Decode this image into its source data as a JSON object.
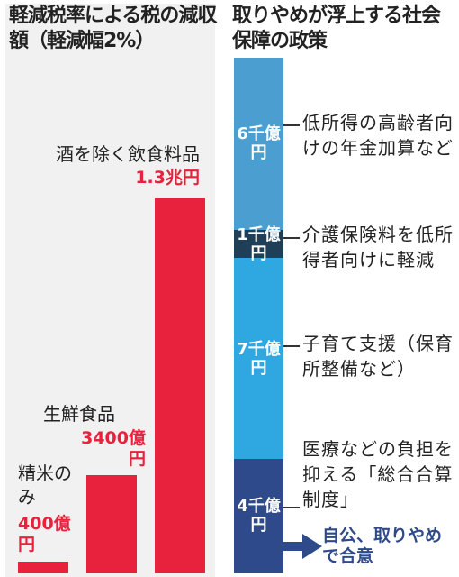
{
  "titles": {
    "left": "軽減税率による税の減収額（軽減幅2%）",
    "right": "取りやめが浮上する社会保障の政策"
  },
  "chart_data": [
    {
      "type": "bar",
      "title": "軽減税率による税の減収額（軽減幅2%）",
      "categories": [
        "精米のみ",
        "生鮮食品",
        "酒を除く飲食料品"
      ],
      "values": [
        400,
        3400,
        13000
      ],
      "value_labels": [
        "400億円",
        "3400億円",
        "1.3兆円"
      ],
      "units": "億円",
      "colors": [
        "#e8213d",
        "#e8213d",
        "#e8213d"
      ]
    },
    {
      "type": "bar",
      "title": "取りやめが浮上する社会保障の政策",
      "stacked": true,
      "categories": [
        "低所得の高齢者向けの年金加算など",
        "介護保険料を低所得者向けに軽減",
        "子育て支援（保育所整備など）",
        "医療などの負担を抑える「総合合算制度」"
      ],
      "values": [
        6000,
        1000,
        7000,
        4000
      ],
      "value_labels": [
        "6千億円",
        "1千億円",
        "7千億円",
        "4千億円"
      ],
      "units": "億円",
      "colors": [
        "#4a9fd0",
        "#1f3f58",
        "#2fa8e2",
        "#2e4a8a"
      ]
    }
  ],
  "annotation": "自公、取りやめで合意"
}
